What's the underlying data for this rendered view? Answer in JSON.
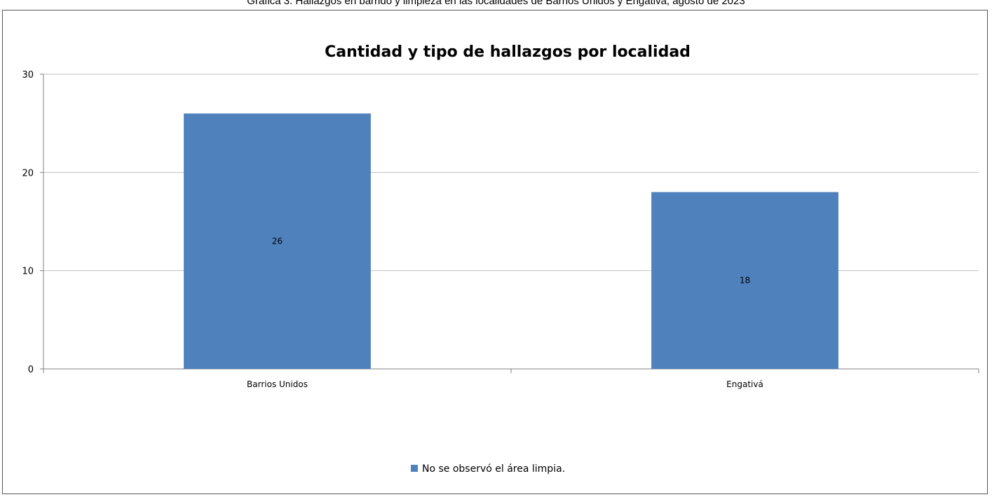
{
  "caption": "Gráfica 3. Hallazgos en barrido y limpieza en las localidades de Barrios Unidos y Engativá, agosto de 2023",
  "chart_data": {
    "type": "bar",
    "title": "Cantidad y tipo de hallazgos por localidad",
    "xlabel": "",
    "ylabel": "",
    "categories": [
      "Barrios Unidos",
      "Engativá"
    ],
    "series": [
      {
        "name": "No se observó el área limpia.",
        "values": [
          26,
          18
        ],
        "color": "#4f81bd"
      }
    ],
    "ylim": [
      0,
      30
    ],
    "yticks": [
      0,
      10,
      20,
      30
    ],
    "grid": true,
    "data_labels": true,
    "legend": "bottom-center"
  }
}
